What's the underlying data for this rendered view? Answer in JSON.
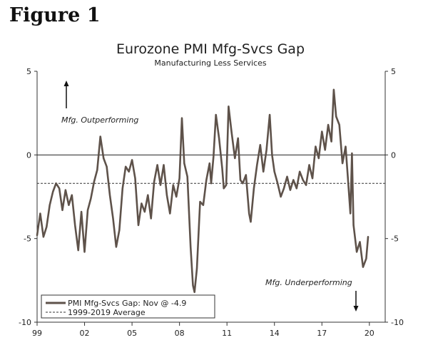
{
  "figure_label": "Figure 1",
  "chart_data": {
    "type": "line",
    "title": "Eurozone PMI Mfg-Svcs Gap",
    "subtitle": "Manufacturing Less Services",
    "xlim": [
      1999,
      2021
    ],
    "ylim": [
      -10,
      5
    ],
    "x_ticks": [
      {
        "x": 1999,
        "label": "99"
      },
      {
        "x": 2002,
        "label": "02"
      },
      {
        "x": 2005,
        "label": "05"
      },
      {
        "x": 2008,
        "label": "08"
      },
      {
        "x": 2011,
        "label": "11"
      },
      {
        "x": 2014,
        "label": "14"
      },
      {
        "x": 2017,
        "label": "17"
      },
      {
        "x": 2020,
        "label": "20"
      }
    ],
    "y_ticks": [
      {
        "y": 5,
        "label": "5"
      },
      {
        "y": 0,
        "label": "0"
      },
      {
        "y": -5,
        "label": "-5"
      },
      {
        "y": -10,
        "label": "-10"
      }
    ],
    "zero_line": 0,
    "average_value": -1.7,
    "colors": {
      "series": "#5e524a",
      "average": "#333333",
      "axis": "#333333",
      "zero": "#222222"
    },
    "annotations": {
      "up": "Mfg. Outperforming",
      "down": "Mfg. Underperforming"
    },
    "legend": {
      "series_label": "PMI Mfg-Svcs Gap: Nov @ -4.9",
      "average_label": "1999-2019 Average",
      "position": "bottom-left"
    },
    "series": [
      {
        "name": "PMI Mfg-Svcs Gap",
        "points": [
          [
            1999.0,
            -4.8
          ],
          [
            1999.2,
            -3.5
          ],
          [
            1999.4,
            -4.9
          ],
          [
            1999.6,
            -4.3
          ],
          [
            1999.8,
            -3.0
          ],
          [
            2000.0,
            -2.2
          ],
          [
            2000.2,
            -1.7
          ],
          [
            2000.4,
            -2.0
          ],
          [
            2000.6,
            -3.3
          ],
          [
            2000.8,
            -2.1
          ],
          [
            2001.0,
            -3.0
          ],
          [
            2001.2,
            -2.4
          ],
          [
            2001.4,
            -4.2
          ],
          [
            2001.6,
            -5.7
          ],
          [
            2001.8,
            -3.4
          ],
          [
            2002.0,
            -5.8
          ],
          [
            2002.2,
            -3.3
          ],
          [
            2002.4,
            -2.6
          ],
          [
            2002.6,
            -1.6
          ],
          [
            2002.8,
            -0.9
          ],
          [
            2003.0,
            1.1
          ],
          [
            2003.2,
            -0.2
          ],
          [
            2003.4,
            -0.7
          ],
          [
            2003.6,
            -2.4
          ],
          [
            2003.8,
            -3.8
          ],
          [
            2004.0,
            -5.5
          ],
          [
            2004.2,
            -4.5
          ],
          [
            2004.4,
            -2.0
          ],
          [
            2004.6,
            -0.7
          ],
          [
            2004.8,
            -1.0
          ],
          [
            2005.0,
            -0.3
          ],
          [
            2005.2,
            -1.4
          ],
          [
            2005.4,
            -4.2
          ],
          [
            2005.6,
            -2.9
          ],
          [
            2005.8,
            -3.4
          ],
          [
            2006.0,
            -2.4
          ],
          [
            2006.2,
            -3.8
          ],
          [
            2006.4,
            -1.6
          ],
          [
            2006.6,
            -0.6
          ],
          [
            2006.8,
            -1.8
          ],
          [
            2007.0,
            -0.6
          ],
          [
            2007.2,
            -2.4
          ],
          [
            2007.4,
            -3.5
          ],
          [
            2007.6,
            -1.8
          ],
          [
            2007.8,
            -2.5
          ],
          [
            2008.0,
            -1.4
          ],
          [
            2008.15,
            2.2
          ],
          [
            2008.3,
            -0.5
          ],
          [
            2008.5,
            -1.3
          ],
          [
            2008.7,
            -5.5
          ],
          [
            2008.85,
            -7.8
          ],
          [
            2008.95,
            -8.2
          ],
          [
            2009.1,
            -6.8
          ],
          [
            2009.3,
            -2.8
          ],
          [
            2009.5,
            -3.0
          ],
          [
            2009.7,
            -1.5
          ],
          [
            2009.9,
            -0.5
          ],
          [
            2010.0,
            -1.7
          ],
          [
            2010.15,
            -0.1
          ],
          [
            2010.3,
            2.4
          ],
          [
            2010.5,
            1.0
          ],
          [
            2010.7,
            -0.8
          ],
          [
            2010.8,
            -2.0
          ],
          [
            2010.95,
            -1.8
          ],
          [
            2011.1,
            2.9
          ],
          [
            2011.3,
            1.3
          ],
          [
            2011.5,
            -0.2
          ],
          [
            2011.7,
            1.0
          ],
          [
            2011.85,
            -1.5
          ],
          [
            2012.0,
            -1.7
          ],
          [
            2012.2,
            -1.2
          ],
          [
            2012.4,
            -3.5
          ],
          [
            2012.5,
            -4.0
          ],
          [
            2012.7,
            -2.0
          ],
          [
            2012.9,
            -0.6
          ],
          [
            2013.1,
            0.6
          ],
          [
            2013.3,
            -1.0
          ],
          [
            2013.5,
            0.3
          ],
          [
            2013.7,
            2.4
          ],
          [
            2013.85,
            0.0
          ],
          [
            2014.0,
            -1.0
          ],
          [
            2014.2,
            -1.7
          ],
          [
            2014.4,
            -2.5
          ],
          [
            2014.6,
            -2.0
          ],
          [
            2014.8,
            -1.3
          ],
          [
            2015.0,
            -2.1
          ],
          [
            2015.2,
            -1.5
          ],
          [
            2015.4,
            -2.0
          ],
          [
            2015.6,
            -1.0
          ],
          [
            2015.8,
            -1.5
          ],
          [
            2016.0,
            -1.8
          ],
          [
            2016.2,
            -0.6
          ],
          [
            2016.4,
            -1.4
          ],
          [
            2016.6,
            0.5
          ],
          [
            2016.8,
            -0.2
          ],
          [
            2017.0,
            1.4
          ],
          [
            2017.2,
            0.3
          ],
          [
            2017.4,
            1.8
          ],
          [
            2017.6,
            0.8
          ],
          [
            2017.75,
            3.9
          ],
          [
            2017.9,
            2.3
          ],
          [
            2018.1,
            1.8
          ],
          [
            2018.3,
            -0.5
          ],
          [
            2018.5,
            0.5
          ],
          [
            2018.65,
            -1.5
          ],
          [
            2018.8,
            -3.5
          ],
          [
            2018.9,
            0.1
          ],
          [
            2019.0,
            -4.2
          ],
          [
            2019.2,
            -5.8
          ],
          [
            2019.4,
            -5.2
          ],
          [
            2019.6,
            -6.7
          ],
          [
            2019.8,
            -6.2
          ],
          [
            2019.92,
            -4.9
          ]
        ]
      }
    ]
  }
}
